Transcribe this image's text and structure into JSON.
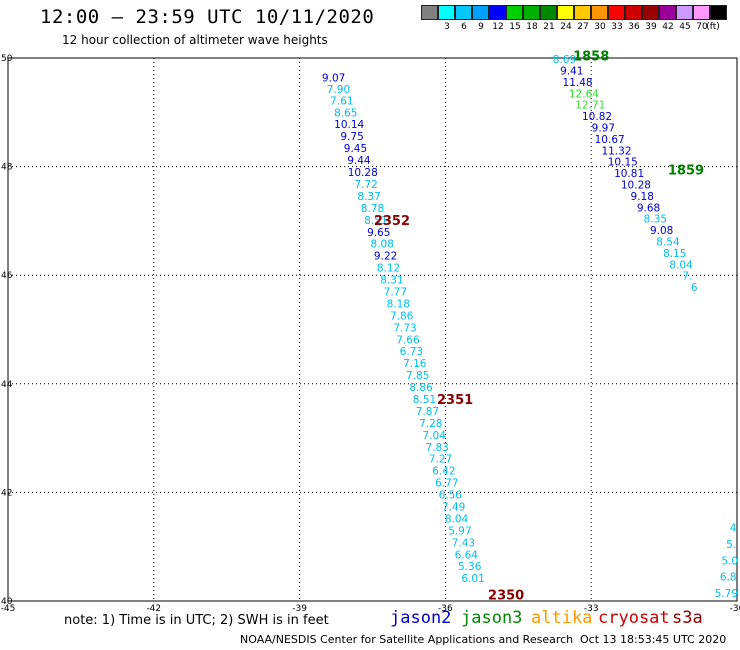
{
  "header": {
    "title": "12:00 – 23:59 UTC 10/11/2020",
    "subtitle": "12 hour collection of altimeter wave heights"
  },
  "color_scale": {
    "unit": "(ft)",
    "bins": [
      {
        "label": "",
        "color": "#808080"
      },
      {
        "label": "3",
        "color": "#00ffff"
      },
      {
        "label": "6",
        "color": "#00c8ff"
      },
      {
        "label": "9",
        "color": "#00a0ff"
      },
      {
        "label": "12",
        "color": "#0000ff"
      },
      {
        "label": "15",
        "color": "#00d000"
      },
      {
        "label": "18",
        "color": "#00b000"
      },
      {
        "label": "21",
        "color": "#008800"
      },
      {
        "label": "24",
        "color": "#ffff00"
      },
      {
        "label": "27",
        "color": "#ffc800"
      },
      {
        "label": "30",
        "color": "#ff9600"
      },
      {
        "label": "33",
        "color": "#ff0000"
      },
      {
        "label": "36",
        "color": "#cc0000"
      },
      {
        "label": "39",
        "color": "#990000"
      },
      {
        "label": "42",
        "color": "#990099"
      },
      {
        "label": "45",
        "color": "#cc99ff"
      },
      {
        "label": "70",
        "color": "#ff99ff"
      },
      {
        "label": "",
        "color": "#000000"
      }
    ]
  },
  "chart_data": {
    "type": "scatter",
    "xlim": [
      -45,
      -30
    ],
    "ylim": [
      40,
      50
    ],
    "x_ticks": [
      "-45",
      "-42",
      "-39",
      "-36",
      "-33",
      "-30"
    ],
    "y_ticks": [
      "40",
      "42",
      "44",
      "46",
      "48",
      "50"
    ],
    "grid": true,
    "colors": {
      "cyan": "#00c0e8",
      "blue": "#0000cc",
      "green": "#33dd33",
      "time_green": "#008000",
      "time_red": "#880000"
    },
    "track_a": [
      {
        "x": -38.3,
        "y": 49.64,
        "v": "9.07",
        "c": "blue"
      },
      {
        "x": -38.2,
        "y": 49.43,
        "v": "7.90",
        "c": "cyan"
      },
      {
        "x": -38.13,
        "y": 49.22,
        "v": "7.61",
        "c": "cyan"
      },
      {
        "x": -38.05,
        "y": 49.0,
        "v": "8.65",
        "c": "cyan"
      },
      {
        "x": -37.98,
        "y": 48.78,
        "v": "10.14",
        "c": "blue"
      },
      {
        "x": -37.92,
        "y": 48.56,
        "v": "9.75",
        "c": "blue"
      },
      {
        "x": -37.85,
        "y": 48.34,
        "v": "9.45",
        "c": "blue"
      },
      {
        "x": -37.78,
        "y": 48.12,
        "v": "9.44",
        "c": "blue"
      },
      {
        "x": -37.7,
        "y": 47.9,
        "v": "10.28",
        "c": "blue"
      },
      {
        "x": -37.63,
        "y": 47.68,
        "v": "7.72",
        "c": "cyan"
      },
      {
        "x": -37.57,
        "y": 47.46,
        "v": "8.37",
        "c": "cyan"
      },
      {
        "x": -37.5,
        "y": 47.24,
        "v": "8.78",
        "c": "cyan"
      },
      {
        "x": -37.43,
        "y": 47.02,
        "v": "8.51",
        "c": "cyan"
      },
      {
        "x": -37.37,
        "y": 46.8,
        "v": "9.65",
        "c": "blue"
      },
      {
        "x": -37.3,
        "y": 46.58,
        "v": "8.08",
        "c": "cyan"
      },
      {
        "x": -37.23,
        "y": 46.36,
        "v": "9.22",
        "c": "blue"
      },
      {
        "x": -37.17,
        "y": 46.14,
        "v": "8.12",
        "c": "cyan"
      },
      {
        "x": -37.1,
        "y": 45.92,
        "v": "8.31",
        "c": "cyan"
      },
      {
        "x": -37.03,
        "y": 45.7,
        "v": "7.77",
        "c": "cyan"
      },
      {
        "x": -36.97,
        "y": 45.48,
        "v": "8.18",
        "c": "cyan"
      },
      {
        "x": -36.9,
        "y": 45.26,
        "v": "7.86",
        "c": "cyan"
      },
      {
        "x": -36.83,
        "y": 45.04,
        "v": "7.73",
        "c": "cyan"
      },
      {
        "x": -36.77,
        "y": 44.82,
        "v": "7.66",
        "c": "cyan"
      },
      {
        "x": -36.7,
        "y": 44.6,
        "v": "6.73",
        "c": "cyan"
      },
      {
        "x": -36.63,
        "y": 44.38,
        "v": "7.16",
        "c": "cyan"
      },
      {
        "x": -36.57,
        "y": 44.16,
        "v": "7.85",
        "c": "cyan"
      },
      {
        "x": -36.5,
        "y": 43.94,
        "v": "8.86",
        "c": "cyan"
      },
      {
        "x": -36.43,
        "y": 43.72,
        "v": "8.51",
        "c": "cyan"
      },
      {
        "x": -36.37,
        "y": 43.5,
        "v": "7.87",
        "c": "cyan"
      },
      {
        "x": -36.3,
        "y": 43.28,
        "v": "7.28",
        "c": "cyan"
      },
      {
        "x": -36.23,
        "y": 43.06,
        "v": "7.04",
        "c": "cyan"
      },
      {
        "x": -36.17,
        "y": 42.84,
        "v": "7.83",
        "c": "cyan"
      },
      {
        "x": -36.1,
        "y": 42.62,
        "v": "7.27",
        "c": "cyan"
      },
      {
        "x": -36.03,
        "y": 42.4,
        "v": "6.42",
        "c": "cyan"
      },
      {
        "x": -35.97,
        "y": 42.18,
        "v": "6.77",
        "c": "cyan"
      },
      {
        "x": -35.9,
        "y": 41.96,
        "v": "6.56",
        "c": "cyan"
      },
      {
        "x": -35.83,
        "y": 41.74,
        "v": "7.49",
        "c": "cyan"
      },
      {
        "x": -35.77,
        "y": 41.52,
        "v": "8.04",
        "c": "cyan"
      },
      {
        "x": -35.7,
        "y": 41.3,
        "v": "5.97",
        "c": "cyan"
      },
      {
        "x": -35.63,
        "y": 41.08,
        "v": "7.43",
        "c": "cyan"
      },
      {
        "x": -35.57,
        "y": 40.86,
        "v": "6.64",
        "c": "cyan"
      },
      {
        "x": -35.5,
        "y": 40.64,
        "v": "5.36",
        "c": "cyan"
      },
      {
        "x": -35.43,
        "y": 40.42,
        "v": "6.01",
        "c": "cyan"
      }
    ],
    "track_b": [
      {
        "x": -33.55,
        "y": 49.98,
        "v": "8.69",
        "c": "cyan"
      },
      {
        "x": -33.4,
        "y": 49.77,
        "v": "9.41",
        "c": "blue"
      },
      {
        "x": -33.28,
        "y": 49.56,
        "v": "11.48",
        "c": "blue"
      },
      {
        "x": -33.15,
        "y": 49.35,
        "v": "12.64",
        "c": "green"
      },
      {
        "x": -33.02,
        "y": 49.14,
        "v": "12.71",
        "c": "green"
      },
      {
        "x": -32.88,
        "y": 48.93,
        "v": "10.82",
        "c": "blue"
      },
      {
        "x": -32.75,
        "y": 48.72,
        "v": "9.97",
        "c": "blue"
      },
      {
        "x": -32.62,
        "y": 48.51,
        "v": "10.67",
        "c": "blue"
      },
      {
        "x": -32.48,
        "y": 48.3,
        "v": "11.32",
        "c": "blue"
      },
      {
        "x": -32.35,
        "y": 48.09,
        "v": "10.15",
        "c": "blue"
      },
      {
        "x": -32.22,
        "y": 47.88,
        "v": "10.81",
        "c": "blue"
      },
      {
        "x": -32.08,
        "y": 47.67,
        "v": "10.28",
        "c": "blue"
      },
      {
        "x": -31.95,
        "y": 47.46,
        "v": "9.18",
        "c": "blue"
      },
      {
        "x": -31.82,
        "y": 47.25,
        "v": "9.68",
        "c": "blue"
      },
      {
        "x": -31.68,
        "y": 47.04,
        "v": "8.35",
        "c": "cyan"
      },
      {
        "x": -31.55,
        "y": 46.83,
        "v": "9.08",
        "c": "blue"
      },
      {
        "x": -31.42,
        "y": 46.62,
        "v": "8.54",
        "c": "cyan"
      },
      {
        "x": -31.28,
        "y": 46.41,
        "v": "8.15",
        "c": "cyan"
      },
      {
        "x": -31.15,
        "y": 46.2,
        "v": "8.04",
        "c": "cyan"
      },
      {
        "x": -31.02,
        "y": 45.99,
        "v": "7.",
        "c": "cyan"
      },
      {
        "x": -30.88,
        "y": 45.78,
        "v": "6",
        "c": "cyan"
      }
    ],
    "track_c": [
      {
        "x": -30.08,
        "y": 41.35,
        "v": "4",
        "c": "cyan"
      },
      {
        "x": -30.12,
        "y": 41.05,
        "v": "5.",
        "c": "cyan"
      },
      {
        "x": -30.15,
        "y": 40.75,
        "v": "5.0",
        "c": "cyan"
      },
      {
        "x": -30.18,
        "y": 40.45,
        "v": "6.8",
        "c": "cyan"
      },
      {
        "x": -30.22,
        "y": 40.15,
        "v": "5.79",
        "c": "cyan"
      }
    ],
    "time_labels": [
      {
        "x": -33.0,
        "y": 50.05,
        "t": "1858",
        "c": "time_green"
      },
      {
        "x": -31.05,
        "y": 47.95,
        "t": "1859",
        "c": "time_green"
      },
      {
        "x": -37.1,
        "y": 47.02,
        "t": "2352",
        "c": "time_red"
      },
      {
        "x": -35.8,
        "y": 43.72,
        "t": "2351",
        "c": "time_red"
      },
      {
        "x": -34.75,
        "y": 40.12,
        "t": "2350",
        "c": "time_red"
      }
    ]
  },
  "footer": {
    "note": "note: 1) Time is in UTC; 2) SWH is in feet",
    "satellites": [
      {
        "name": "jason2",
        "color": "#0000cc"
      },
      {
        "name": "jason3",
        "color": "#008800"
      },
      {
        "name": "altika",
        "color": "#ff9900"
      },
      {
        "name": "cryosat",
        "color": "#cc0000"
      },
      {
        "name": "s3a",
        "color": "#880000"
      }
    ],
    "credit": "NOAA/NESDIS Center for Satellite Applications and Research",
    "timestamp": "Oct 13 18:53:45 UTC 2020"
  }
}
